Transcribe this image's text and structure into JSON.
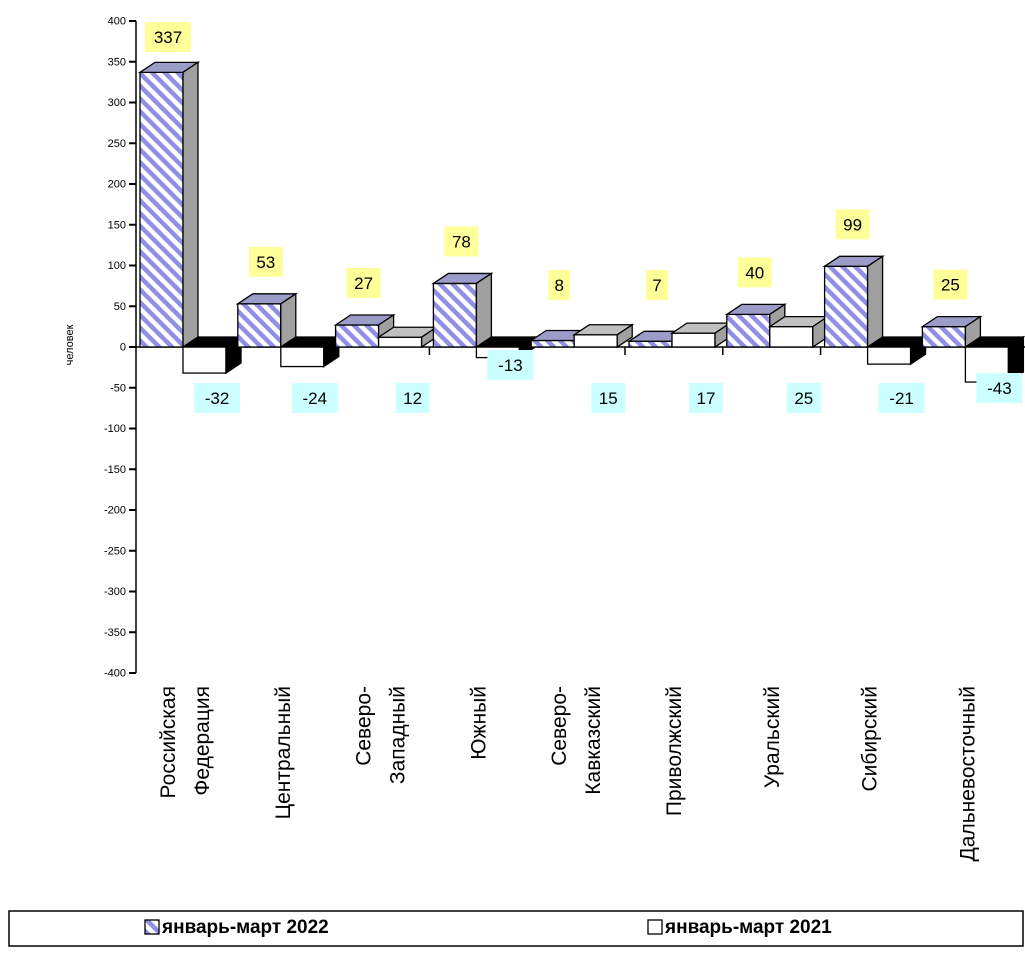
{
  "chart_data": {
    "type": "bar",
    "ylabel": "человек",
    "ylim": [
      -400,
      400
    ],
    "ytick_step": 50,
    "categories": [
      [
        "Российская",
        "Федерация"
      ],
      [
        "Центральный"
      ],
      [
        "Северо-",
        "Западный"
      ],
      [
        "Южный"
      ],
      [
        "Северо-",
        "Кавказский"
      ],
      [
        "Приволжский"
      ],
      [
        "Уральский"
      ],
      [
        "Сибирский"
      ],
      [
        "Дальневосточный"
      ]
    ],
    "series": [
      {
        "name": "январь-март 2022",
        "values": [
          337,
          53,
          27,
          78,
          8,
          7,
          40,
          99,
          25
        ],
        "label_color": "#ffff99",
        "style": "hatched-blue"
      },
      {
        "name": "январь-март 2021",
        "values": [
          -32,
          -24,
          12,
          -13,
          15,
          17,
          25,
          -21,
          -43
        ],
        "label_color": "#ccffff",
        "style": "white"
      }
    ],
    "legend": "bottom"
  }
}
